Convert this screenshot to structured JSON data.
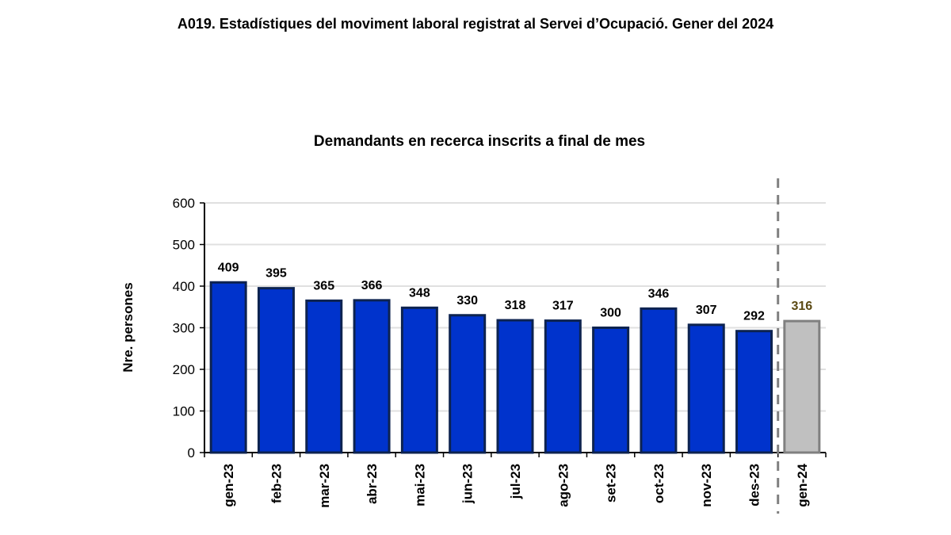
{
  "page_title": "A019. Estadístiques del moviment laboral registrat al Servei d’Ocupació. Gener del 2024",
  "chart_data": {
    "type": "bar",
    "title": "Demandants en recerca inscrits  a final de mes",
    "xlabel": "",
    "ylabel": "Nre. persones",
    "ylim": [
      0,
      600
    ],
    "yticks": [
      0,
      100,
      200,
      300,
      400,
      500,
      600
    ],
    "grid": true,
    "categories": [
      "gen-23",
      "feb-23",
      "mar-23",
      "abr-23",
      "mai-23",
      "jun-23",
      "jul-23",
      "ago-23",
      "set-23",
      "oct-23",
      "nov-23",
      "des-23",
      "gen-24"
    ],
    "values": [
      409,
      395,
      365,
      366,
      348,
      330,
      318,
      317,
      300,
      346,
      307,
      292,
      316
    ],
    "colors": {
      "main": "#0033cc",
      "main_border": "#0d2350",
      "highlight": "#c0c0c0",
      "highlight_border": "#808080",
      "highlight_label": "#5c4a14"
    },
    "highlight_index": 12,
    "separator": "dashed line between des-23 and gen-24"
  }
}
